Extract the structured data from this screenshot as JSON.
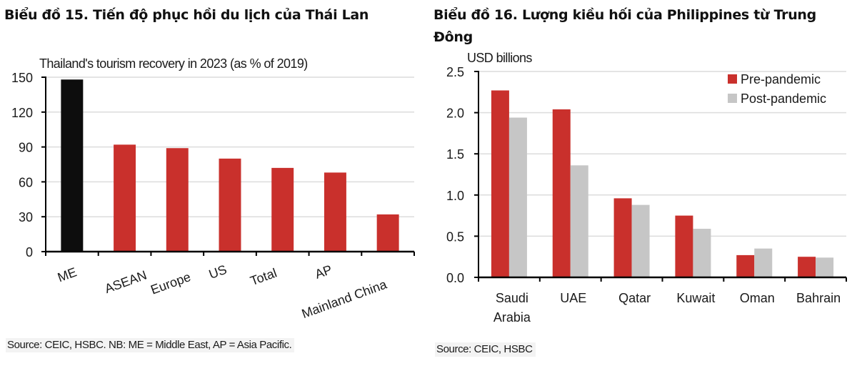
{
  "headings": {
    "chart15": "Biểu đồ 15. Tiến độ phục hồi du lịch của Thái Lan",
    "chart16": "Biểu đồ 16. Lượng kiều hối của Philippines từ Trung Đông"
  },
  "sources": {
    "chart15": "Source: CEIC, HSBC. NB: ME = Middle East, AP = Asia Pacific.",
    "chart16": "Source: CEIC, HSBC"
  },
  "colors": {
    "red": "#c9302c",
    "black": "#0d0d0d",
    "grey": "#c6c6c6",
    "grid": "#dcdcdc",
    "axis": "#000000"
  },
  "chart_data": [
    {
      "type": "bar",
      "title": "Thailand's tourism recovery in 2023 (as % of 2019)",
      "xlabel": "",
      "ylabel": "",
      "categories": [
        "ME",
        "ASEAN",
        "Europe",
        "US",
        "Total",
        "AP",
        "Mainland China"
      ],
      "values": [
        148,
        92,
        89,
        80,
        72,
        68,
        32
      ],
      "bar_colors": [
        "black",
        "red",
        "red",
        "red",
        "red",
        "red",
        "red"
      ],
      "ylim": [
        0,
        150
      ],
      "yticks": [
        0,
        30,
        60,
        90,
        120,
        150
      ],
      "ytick_labels": [
        "0",
        "30",
        "60",
        "90",
        "120",
        "150"
      ],
      "grid": true,
      "x_labels_rotated": true
    },
    {
      "type": "bar",
      "title": "USD billions",
      "xlabel": "",
      "ylabel": "USD billions",
      "categories": [
        "Saudi Arabia",
        "UAE",
        "Qatar",
        "Kuwait",
        "Oman",
        "Bahrain"
      ],
      "category_lines": [
        [
          "Saudi",
          "Arabia"
        ],
        [
          "UAE"
        ],
        [
          "Qatar"
        ],
        [
          "Kuwait"
        ],
        [
          "Oman"
        ],
        [
          "Bahrain"
        ]
      ],
      "series": [
        {
          "name": "Pre-pandemic",
          "color": "red",
          "values": [
            2.27,
            2.04,
            0.96,
            0.75,
            0.27,
            0.25
          ]
        },
        {
          "name": "Post-pandemic",
          "color": "grey",
          "values": [
            1.94,
            1.36,
            0.88,
            0.59,
            0.35,
            0.24
          ]
        }
      ],
      "ylim": [
        0,
        2.5
      ],
      "yticks": [
        0,
        0.5,
        1.0,
        1.5,
        2.0,
        2.5
      ],
      "ytick_labels": [
        "0.0",
        "0.5",
        "1.0",
        "1.5",
        "2.0",
        "2.5"
      ],
      "grid": true,
      "legend": "top-right"
    }
  ]
}
